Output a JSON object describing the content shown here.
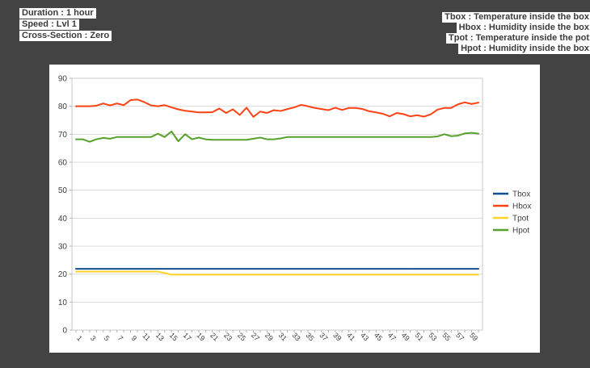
{
  "background_color": "#434343",
  "header_left": {
    "lines": [
      "Duration : 1 hour",
      "Speed : Lvl 1",
      "Cross-Section : Zero"
    ]
  },
  "header_right": {
    "lines": [
      "Tbox : Temperature inside the box",
      "Hbox : Humidity inside the box",
      "Tpot : Temperature inside the pot",
      "Hpot : Humidity inside the box"
    ]
  },
  "chart_data": {
    "type": "line",
    "title": "",
    "xlabel": "",
    "ylabel": "",
    "x_count": 60,
    "xtick_labels": [
      "1",
      "3",
      "5",
      "7",
      "9",
      "11",
      "13",
      "15",
      "17",
      "19",
      "21",
      "23",
      "25",
      "27",
      "29",
      "31",
      "33",
      "35",
      "37",
      "39",
      "41",
      "43",
      "45",
      "47",
      "49",
      "51",
      "53",
      "55",
      "57",
      "59"
    ],
    "ylim": [
      0,
      90
    ],
    "yticks": [
      0,
      10,
      20,
      30,
      40,
      50,
      60,
      70,
      80,
      90
    ],
    "grid": "horizontal",
    "legend_position": "right",
    "colors": {
      "grid": "#dcdcdc",
      "plot_border": "#c8c8c8",
      "tick": "#b0b0b0",
      "label_text": "#404040"
    },
    "series": [
      {
        "name": "Tbox",
        "color": "#124F8C",
        "values": [
          21.9,
          21.9,
          21.9,
          21.9,
          21.9,
          21.9,
          21.9,
          21.9,
          21.9,
          21.9,
          21.9,
          21.9,
          21.9,
          21.9,
          21.9,
          21.9,
          21.9,
          21.9,
          21.9,
          21.9,
          21.9,
          21.9,
          21.9,
          21.9,
          21.9,
          21.9,
          21.9,
          21.9,
          21.9,
          21.9,
          21.9,
          21.9,
          21.9,
          21.9,
          21.9,
          21.9,
          21.9,
          21.9,
          21.9,
          21.9,
          21.9,
          21.9,
          21.9,
          21.9,
          21.9,
          21.9,
          21.9,
          21.9,
          21.9,
          21.9,
          21.9,
          21.9,
          21.9,
          21.9,
          21.9,
          21.9,
          21.9,
          21.9,
          21.9,
          21.9
        ]
      },
      {
        "name": "Hbox",
        "color": "#FF4214",
        "values": [
          80,
          80,
          80,
          80.2,
          81,
          80.3,
          81,
          80.4,
          82.2,
          82.4,
          81.5,
          80.3,
          80,
          80.4,
          79.6,
          78.9,
          78.4,
          78.1,
          77.8,
          77.8,
          77.9,
          79.2,
          77.6,
          78.9,
          76.9,
          79.5,
          76.2,
          78.1,
          77.6,
          78.6,
          78.3,
          79,
          79.6,
          80.5,
          80,
          79.4,
          79,
          78.6,
          79.5,
          78.7,
          79.4,
          79.4,
          79,
          78.2,
          77.8,
          77.3,
          76.4,
          77.6,
          77.2,
          76.4,
          76.8,
          76.3,
          77.1,
          78.8,
          79.4,
          79.4,
          80.7,
          81.4,
          80.8,
          81.3
        ]
      },
      {
        "name": "Tpot",
        "color": "#FFD226",
        "values": [
          20.9,
          20.9,
          20.9,
          20.9,
          20.9,
          20.9,
          20.9,
          20.9,
          20.9,
          20.9,
          20.9,
          20.9,
          20.9,
          20.4,
          19.8,
          19.8,
          19.8,
          19.8,
          19.8,
          19.8,
          19.8,
          19.8,
          19.8,
          19.8,
          19.8,
          19.8,
          19.8,
          19.8,
          19.8,
          19.8,
          19.8,
          19.8,
          19.8,
          19.8,
          19.8,
          19.8,
          19.8,
          19.8,
          19.8,
          19.8,
          19.8,
          19.8,
          19.8,
          19.8,
          19.8,
          19.8,
          19.8,
          19.8,
          19.8,
          19.8,
          19.8,
          19.8,
          19.8,
          19.8,
          19.8,
          19.8,
          19.8,
          19.8,
          19.8,
          19.8
        ]
      },
      {
        "name": "Hpot",
        "color": "#57A02C",
        "values": [
          68.2,
          68.2,
          67.3,
          68.2,
          68.7,
          68.4,
          69,
          69,
          69,
          69,
          69,
          69,
          70.2,
          69,
          71,
          67.5,
          70,
          68.2,
          68.8,
          68.2,
          68,
          68,
          68,
          68,
          68,
          68,
          68.4,
          68.8,
          68.2,
          68.2,
          68.5,
          69,
          69,
          69,
          69,
          69,
          69,
          69,
          69,
          69,
          69,
          69,
          69,
          69,
          69,
          69,
          69,
          69,
          69,
          69,
          69,
          69,
          69,
          69.2,
          70,
          69.3,
          69.5,
          70.3,
          70.5,
          70.2
        ]
      }
    ]
  }
}
